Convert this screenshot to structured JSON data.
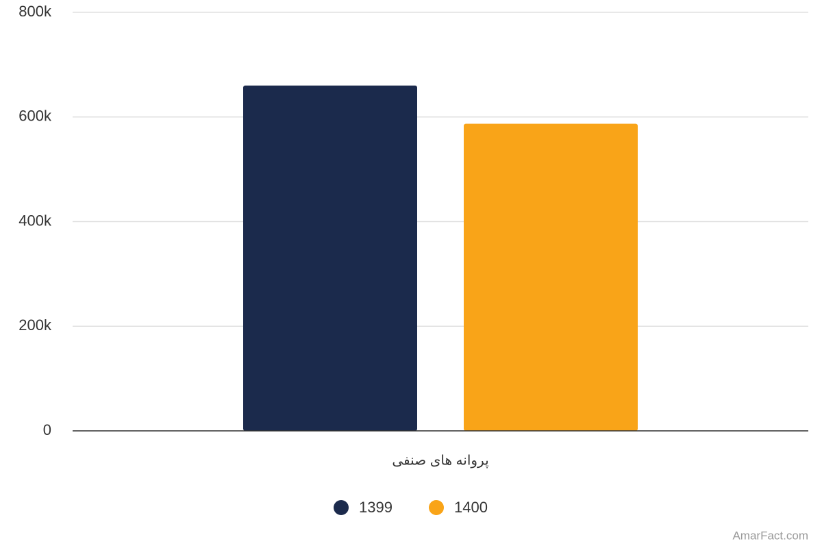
{
  "chart_data": {
    "type": "bar",
    "categories": [
      "پروانه های صنفی"
    ],
    "series": [
      {
        "name": "1399",
        "color": "#1b2a4c",
        "values": [
          660000
        ]
      },
      {
        "name": "1400",
        "color": "#f9a418",
        "values": [
          587000
        ]
      }
    ],
    "ylim": [
      0,
      800000
    ],
    "yticks": [
      0,
      {
        "value": 200000,
        "label": "200k"
      },
      {
        "value": 400000,
        "label": "400k"
      },
      {
        "value": 600000,
        "label": "600k"
      },
      {
        "value": 800000,
        "label": "800k"
      }
    ],
    "grid": true,
    "legend": "bottom",
    "credit": "AmarFact.com"
  }
}
